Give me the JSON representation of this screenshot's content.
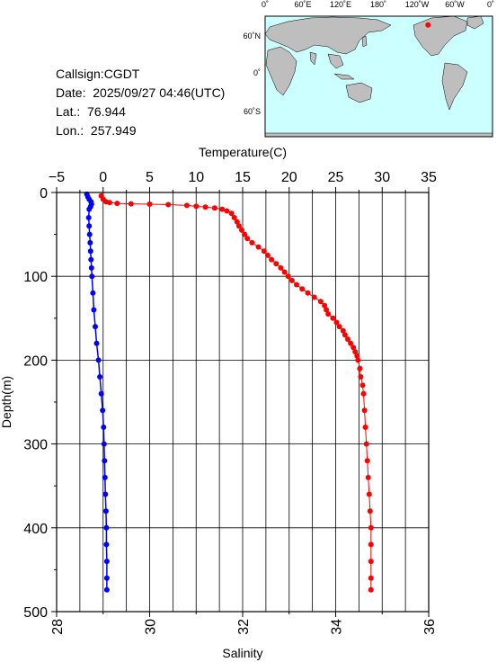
{
  "info": {
    "callsign": "Callsign:CGDT",
    "date_label": "Date:",
    "date_value": "2025/09/27 04:46(UTC)",
    "lat_label": "Lat.:",
    "lat_value": "76.944",
    "lon_label": "Lon.:",
    "lon_value": "257.949"
  },
  "map": {
    "top_ticks": [
      "0˚",
      "60˚E",
      "120˚E",
      "180˚",
      "120˚W",
      "60˚W",
      "0˚"
    ],
    "left_ticks": [
      "60˚N",
      "0˚",
      "60˚S"
    ],
    "ocean_color": "#ccffff",
    "land_color": "#bebebe",
    "marker_color": "#ff0000",
    "marker": {
      "lat": 76.944,
      "lon": 257.949
    }
  },
  "chart_data": {
    "type": "line",
    "ylabel": "Depth(m)",
    "y_reversed": true,
    "ylim": [
      0,
      500
    ],
    "yticks": [
      "0",
      "100",
      "200",
      "300",
      "400",
      "500"
    ],
    "top_axis": {
      "label": "Temperature(C)",
      "lim": [
        -5,
        35
      ],
      "ticks": [
        "−5",
        "0",
        "5",
        "10",
        "15",
        "20",
        "25",
        "30",
        "35"
      ]
    },
    "bottom_axis": {
      "label": "Salinity",
      "lim": [
        28,
        36
      ],
      "ticks": [
        "28",
        "30",
        "32",
        "34",
        "36"
      ]
    },
    "grid": true,
    "series": [
      {
        "axis": "top",
        "color": "#ff0000",
        "marker": "dot",
        "points": [
          [
            -0.2,
            4
          ],
          [
            0.0,
            8
          ],
          [
            0.3,
            11
          ],
          [
            0.7,
            12
          ],
          [
            1.5,
            13
          ],
          [
            3.0,
            13.5
          ],
          [
            5.0,
            14
          ],
          [
            7.0,
            14.5
          ],
          [
            9.0,
            15.5
          ],
          [
            10.0,
            16.5
          ],
          [
            11.0,
            17.5
          ],
          [
            12.0,
            18.5
          ],
          [
            12.8,
            20
          ],
          [
            13.3,
            22
          ],
          [
            13.8,
            25
          ],
          [
            14.1,
            30
          ],
          [
            14.4,
            35
          ],
          [
            14.6,
            40
          ],
          [
            14.9,
            45
          ],
          [
            15.2,
            50
          ],
          [
            15.5,
            55
          ],
          [
            16.0,
            60
          ],
          [
            16.7,
            65
          ],
          [
            17.3,
            70
          ],
          [
            17.7,
            75
          ],
          [
            18.1,
            80
          ],
          [
            18.6,
            85
          ],
          [
            19.1,
            90
          ],
          [
            19.5,
            95
          ],
          [
            19.9,
            100
          ],
          [
            20.3,
            105
          ],
          [
            20.8,
            110
          ],
          [
            21.4,
            115
          ],
          [
            22.0,
            120
          ],
          [
            22.7,
            125
          ],
          [
            23.4,
            130
          ],
          [
            23.8,
            135
          ],
          [
            24.0,
            140
          ],
          [
            24.2,
            145
          ],
          [
            24.7,
            150
          ],
          [
            25.1,
            155
          ],
          [
            25.4,
            160
          ],
          [
            25.8,
            165
          ],
          [
            26.0,
            170
          ],
          [
            26.3,
            175
          ],
          [
            26.6,
            180
          ],
          [
            26.9,
            185
          ],
          [
            27.1,
            190
          ],
          [
            27.3,
            195
          ],
          [
            27.4,
            200
          ],
          [
            27.6,
            210
          ],
          [
            27.7,
            220
          ],
          [
            27.9,
            230
          ],
          [
            28.0,
            240
          ],
          [
            28.1,
            260
          ],
          [
            28.2,
            280
          ],
          [
            28.3,
            300
          ],
          [
            28.4,
            320
          ],
          [
            28.5,
            340
          ],
          [
            28.6,
            360
          ],
          [
            28.7,
            380
          ],
          [
            28.8,
            400
          ],
          [
            28.8,
            420
          ],
          [
            28.8,
            440
          ],
          [
            28.8,
            460
          ],
          [
            28.8,
            474
          ]
        ]
      },
      {
        "axis": "bottom",
        "color": "#0000ff",
        "marker": "dot",
        "points": [
          [
            28.65,
            2
          ],
          [
            28.67,
            5
          ],
          [
            28.7,
            8
          ],
          [
            28.74,
            11
          ],
          [
            28.75,
            14
          ],
          [
            28.73,
            17
          ],
          [
            28.7,
            20
          ],
          [
            28.69,
            30
          ],
          [
            28.7,
            40
          ],
          [
            28.71,
            50
          ],
          [
            28.72,
            60
          ],
          [
            28.73,
            70
          ],
          [
            28.74,
            80
          ],
          [
            28.75,
            90
          ],
          [
            28.76,
            100
          ],
          [
            28.78,
            120
          ],
          [
            28.8,
            140
          ],
          [
            28.83,
            160
          ],
          [
            28.86,
            180
          ],
          [
            28.9,
            200
          ],
          [
            28.93,
            220
          ],
          [
            28.96,
            240
          ],
          [
            28.99,
            260
          ],
          [
            29.01,
            280
          ],
          [
            29.02,
            300
          ],
          [
            29.03,
            320
          ],
          [
            29.04,
            340
          ],
          [
            29.05,
            360
          ],
          [
            29.06,
            380
          ],
          [
            29.07,
            400
          ],
          [
            29.07,
            420
          ],
          [
            29.08,
            440
          ],
          [
            29.08,
            460
          ],
          [
            29.08,
            474
          ]
        ]
      }
    ]
  }
}
